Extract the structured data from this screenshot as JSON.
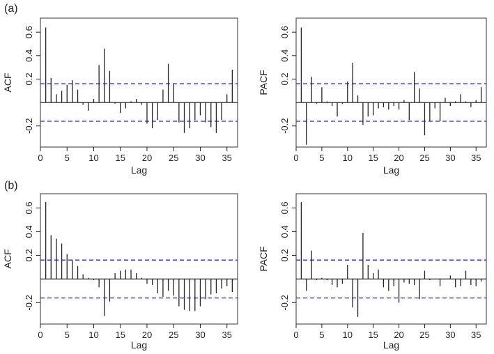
{
  "figure": {
    "panel_labels": [
      "(a)",
      "(b)"
    ]
  },
  "chart_data": [
    {
      "type": "bar",
      "id": "a-acf",
      "panel": "(a)",
      "xlabel": "Lag",
      "ylabel": "ACF",
      "xlim": [
        0,
        37
      ],
      "ylim": [
        -0.38,
        0.72
      ],
      "xticks": [
        0,
        5,
        10,
        15,
        20,
        25,
        30,
        35
      ],
      "yticks": [
        -0.2,
        0.2,
        0.4,
        0.6
      ],
      "ytick_labels": [
        "-0.2",
        "0.2",
        "0.4",
        "0.6"
      ],
      "conf_limit": 0.16,
      "lags": [
        1,
        2,
        3,
        4,
        5,
        6,
        7,
        8,
        9,
        10,
        11,
        12,
        13,
        14,
        15,
        16,
        17,
        18,
        19,
        20,
        21,
        22,
        23,
        24,
        25,
        26,
        27,
        28,
        29,
        30,
        31,
        32,
        33,
        34,
        35,
        36
      ],
      "values": [
        0.64,
        0.21,
        0.07,
        0.1,
        0.15,
        0.19,
        0.11,
        -0.02,
        -0.07,
        0.03,
        0.32,
        0.46,
        0.27,
        -0.01,
        -0.09,
        -0.05,
        0.01,
        0.03,
        -0.02,
        -0.18,
        -0.22,
        -0.15,
        0.11,
        0.33,
        0.16,
        -0.17,
        -0.26,
        -0.22,
        -0.15,
        -0.11,
        -0.17,
        -0.21,
        -0.26,
        -0.15,
        0.07,
        0.28
      ]
    },
    {
      "type": "bar",
      "id": "a-pacf",
      "panel": "(a)",
      "xlabel": "Lag",
      "ylabel": "PACF",
      "xlim": [
        0,
        37
      ],
      "ylim": [
        -0.38,
        0.72
      ],
      "xticks": [
        0,
        5,
        10,
        15,
        20,
        25,
        30,
        35
      ],
      "yticks": [
        -0.2,
        0.2,
        0.4,
        0.6
      ],
      "ytick_labels": [
        "-0.2",
        "0.2",
        "0.4",
        "0.6"
      ],
      "conf_limit": 0.16,
      "lags": [
        1,
        2,
        3,
        4,
        5,
        6,
        7,
        8,
        9,
        10,
        11,
        12,
        13,
        14,
        15,
        16,
        17,
        18,
        19,
        20,
        21,
        22,
        23,
        24,
        25,
        26,
        27,
        28,
        29,
        30,
        31,
        32,
        33,
        34,
        35,
        36
      ],
      "values": [
        0.64,
        -0.36,
        0.22,
        -0.01,
        0.13,
        0.01,
        -0.03,
        -0.12,
        -0.01,
        0.18,
        0.34,
        0.06,
        -0.19,
        -0.12,
        -0.11,
        -0.05,
        -0.04,
        -0.06,
        -0.03,
        -0.06,
        0.02,
        -0.15,
        0.26,
        0.12,
        -0.28,
        -0.16,
        -0.05,
        -0.16,
        0.04,
        -0.03,
        0.01,
        0.07,
        0.01,
        -0.04,
        0.02,
        0.13
      ]
    },
    {
      "type": "bar",
      "id": "b-acf",
      "panel": "(b)",
      "xlabel": "Lag",
      "ylabel": "ACF",
      "xlim": [
        0,
        37
      ],
      "ylim": [
        -0.38,
        0.72
      ],
      "xticks": [
        0,
        5,
        10,
        15,
        20,
        25,
        30,
        35
      ],
      "yticks": [
        -0.2,
        0.2,
        0.4,
        0.6
      ],
      "ytick_labels": [
        "-0.2",
        "0.2",
        "0.4",
        "0.6"
      ],
      "conf_limit": 0.16,
      "lags": [
        1,
        2,
        3,
        4,
        5,
        6,
        7,
        8,
        9,
        10,
        11,
        12,
        13,
        14,
        15,
        16,
        17,
        18,
        19,
        20,
        21,
        22,
        23,
        24,
        25,
        26,
        27,
        28,
        29,
        30,
        31,
        32,
        33,
        34,
        35,
        36
      ],
      "values": [
        0.65,
        0.37,
        0.34,
        0.3,
        0.21,
        0.16,
        0.11,
        0.04,
        0.01,
        -0.01,
        -0.07,
        -0.31,
        -0.19,
        0.05,
        0.07,
        0.08,
        0.08,
        0.05,
        0.01,
        -0.04,
        -0.05,
        -0.12,
        -0.15,
        -0.1,
        -0.14,
        -0.23,
        -0.26,
        -0.27,
        -0.27,
        -0.23,
        -0.17,
        -0.13,
        -0.12,
        -0.08,
        -0.06,
        -0.11
      ]
    },
    {
      "type": "bar",
      "id": "b-pacf",
      "panel": "(b)",
      "xlabel": "Lag",
      "ylabel": "PACF",
      "xlim": [
        0,
        37
      ],
      "ylim": [
        -0.38,
        0.72
      ],
      "xticks": [
        0,
        5,
        10,
        15,
        20,
        25,
        30,
        35
      ],
      "yticks": [
        -0.2,
        0.2,
        0.4,
        0.6
      ],
      "ytick_labels": [
        "-0.2",
        "0.2",
        "0.4",
        "0.6"
      ],
      "conf_limit": 0.16,
      "lags": [
        1,
        2,
        3,
        4,
        5,
        6,
        7,
        8,
        9,
        10,
        11,
        12,
        13,
        14,
        15,
        16,
        17,
        18,
        19,
        20,
        21,
        22,
        23,
        24,
        25,
        26,
        27,
        28,
        29,
        30,
        31,
        32,
        33,
        34,
        35,
        36
      ],
      "values": [
        0.65,
        -0.1,
        0.24,
        -0.01,
        0.01,
        -0.01,
        -0.05,
        -0.07,
        -0.04,
        0.12,
        -0.24,
        -0.32,
        0.39,
        0.12,
        0.05,
        0.08,
        -0.07,
        -0.1,
        -0.06,
        -0.2,
        -0.03,
        -0.04,
        -0.05,
        -0.17,
        0.07,
        -0.01,
        0.0,
        -0.06,
        0.0,
        0.03,
        -0.07,
        -0.06,
        0.07,
        -0.05,
        -0.06,
        -0.02
      ]
    }
  ],
  "colors": {
    "axis": "#222222",
    "bar": "#222222",
    "conf_line": "#2424e0",
    "frame": "#333333"
  }
}
